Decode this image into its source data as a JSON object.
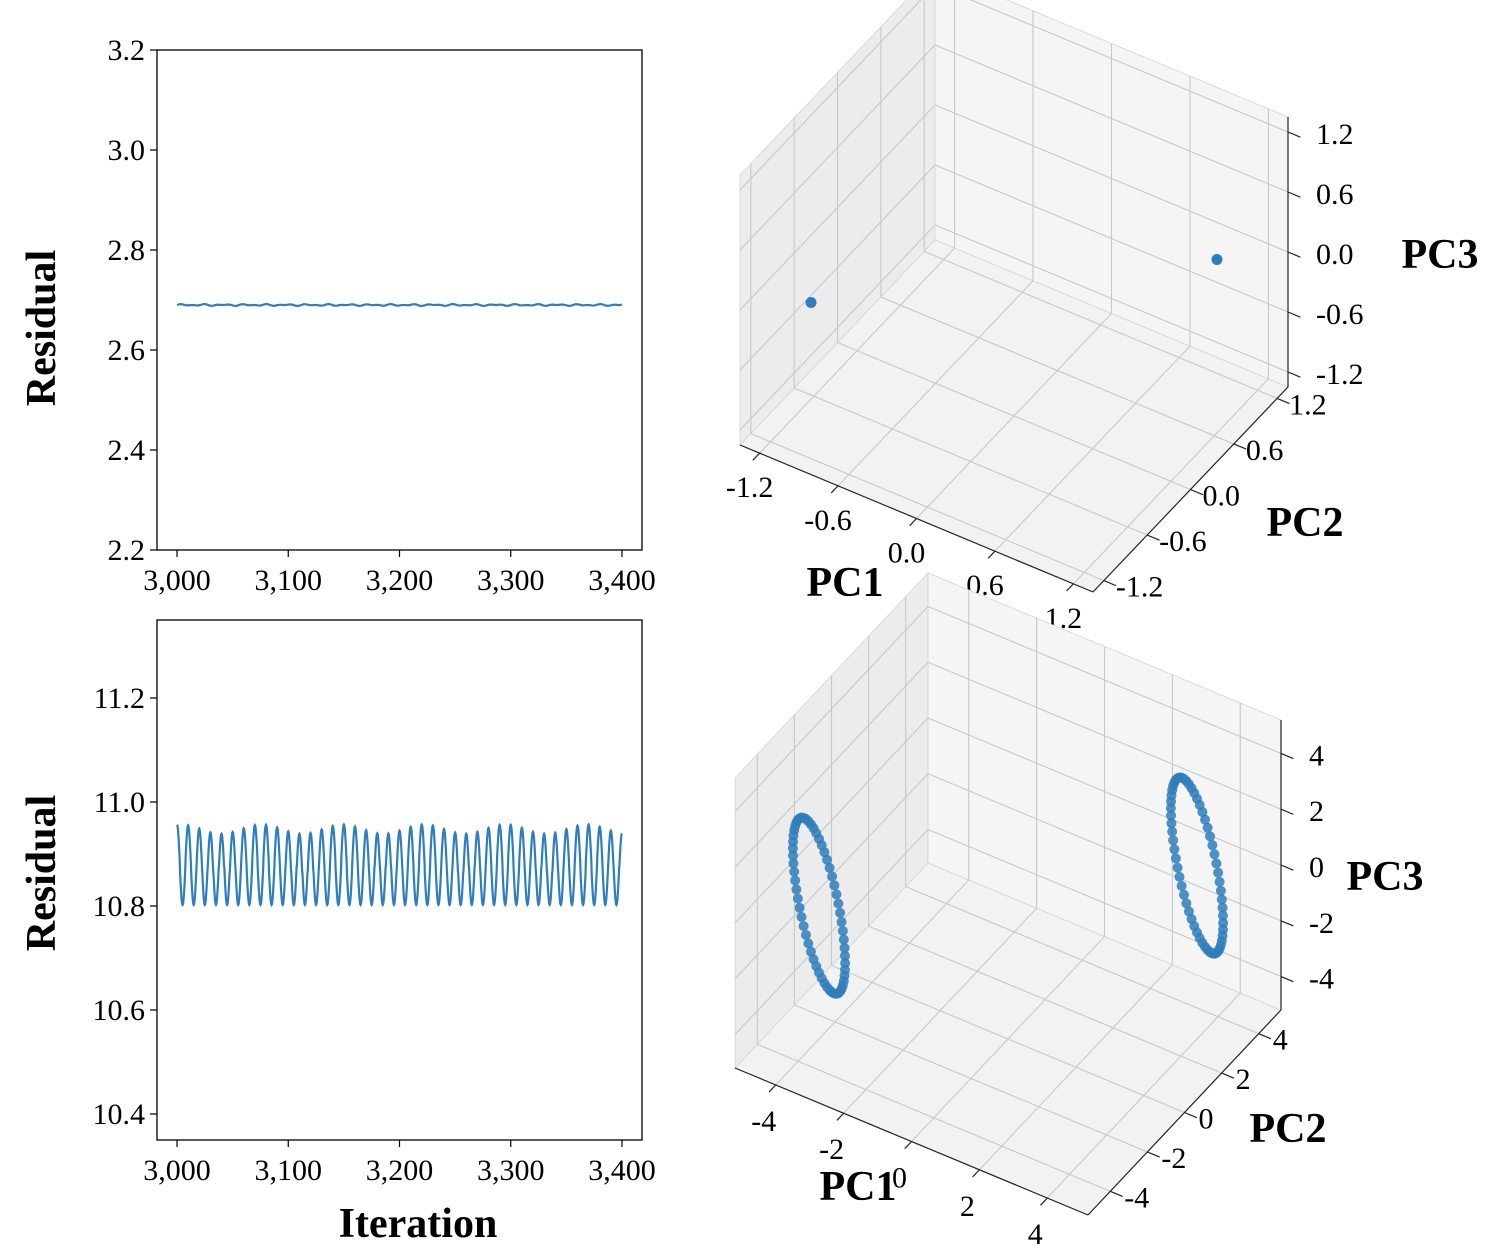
{
  "chart_data": [
    {
      "type": "line",
      "panel": "top-left",
      "xlabel": "",
      "ylabel": "Residual",
      "xlim": [
        2982,
        3418
      ],
      "ylim": [
        2.2,
        3.2
      ],
      "x_ticks": [
        "3,000",
        "3,100",
        "3,200",
        "3,300",
        "3,400"
      ],
      "x_tick_values": [
        3000,
        3100,
        3200,
        3300,
        3400
      ],
      "y_ticks": [
        "2.2",
        "2.4",
        "2.6",
        "2.8",
        "3.0",
        "3.2"
      ],
      "y_tick_values": [
        2.2,
        2.4,
        2.6,
        2.8,
        3.0,
        3.2
      ],
      "series": [
        {
          "x_range": [
            3000,
            3400
          ],
          "level": 2.69,
          "variation": 0.002,
          "pattern": "flat"
        }
      ],
      "color": "#2f7ebc"
    },
    {
      "type": "scatter",
      "panel": "top-right",
      "projection": "3d",
      "xlabel": "PC1",
      "ylabel": "PC2",
      "zlabel": "PC3",
      "xlim": [
        -1.35,
        1.35
      ],
      "ylim": [
        -1.35,
        1.35
      ],
      "zlim": [
        -1.35,
        1.35
      ],
      "x_ticks": [
        "-1.2",
        "-0.6",
        "0.0",
        "0.6",
        "1.2"
      ],
      "y_ticks": [
        "-1.2",
        "-0.6",
        "0.0",
        "0.6",
        "1.2"
      ],
      "z_ticks": [
        "-1.2",
        "-0.6",
        "0.0",
        "0.6",
        "1.2"
      ],
      "tick_values": [
        -1.2,
        -0.6,
        0.0,
        0.6,
        1.2
      ],
      "points": [
        {
          "x": -1.0,
          "y": -1.0,
          "z": 0.0
        },
        {
          "x": 1.0,
          "y": 1.0,
          "z": 0.0
        }
      ],
      "color": "#2f7ebc"
    },
    {
      "type": "line",
      "panel": "bottom-left",
      "xlabel": "Iteration",
      "ylabel": "Residual",
      "xlim": [
        2982,
        3418
      ],
      "ylim": [
        10.35,
        11.35
      ],
      "x_ticks": [
        "3,000",
        "3,100",
        "3,200",
        "3,300",
        "3,400"
      ],
      "x_tick_values": [
        3000,
        3100,
        3200,
        3300,
        3400
      ],
      "y_ticks": [
        "10.4",
        "10.6",
        "10.8",
        "11.0",
        "11.2"
      ],
      "y_tick_values": [
        10.4,
        10.6,
        10.8,
        11.0,
        11.2
      ],
      "series": [
        {
          "x_range": [
            3000,
            3400
          ],
          "min": 10.8,
          "max": 10.95,
          "period": 10,
          "pattern": "oscillating"
        }
      ],
      "color": "#2f7ebc"
    },
    {
      "type": "scatter",
      "panel": "bottom-right",
      "projection": "3d",
      "xlabel": "PC1",
      "ylabel": "PC2",
      "zlabel": "PC3",
      "xlim": [
        -5.2,
        5.2
      ],
      "ylim": [
        -5.2,
        5.2
      ],
      "zlim": [
        -5.2,
        5.2
      ],
      "x_ticks": [
        "-4",
        "-2",
        "0",
        "2",
        "4"
      ],
      "y_ticks": [
        "-4",
        "-2",
        "0",
        "2",
        "4"
      ],
      "z_ticks": [
        "-4",
        "-2",
        "0",
        "2",
        "4"
      ],
      "tick_values": [
        -4,
        -2,
        0,
        2,
        4
      ],
      "rings": [
        {
          "center": [
            -3.6,
            -3.6,
            0.3
          ],
          "radius": 2.4,
          "n_points": 60
        },
        {
          "center": [
            3.6,
            3.6,
            0.3
          ],
          "radius": 2.4,
          "n_points": 60
        }
      ],
      "color": "#2f7ebc"
    }
  ]
}
